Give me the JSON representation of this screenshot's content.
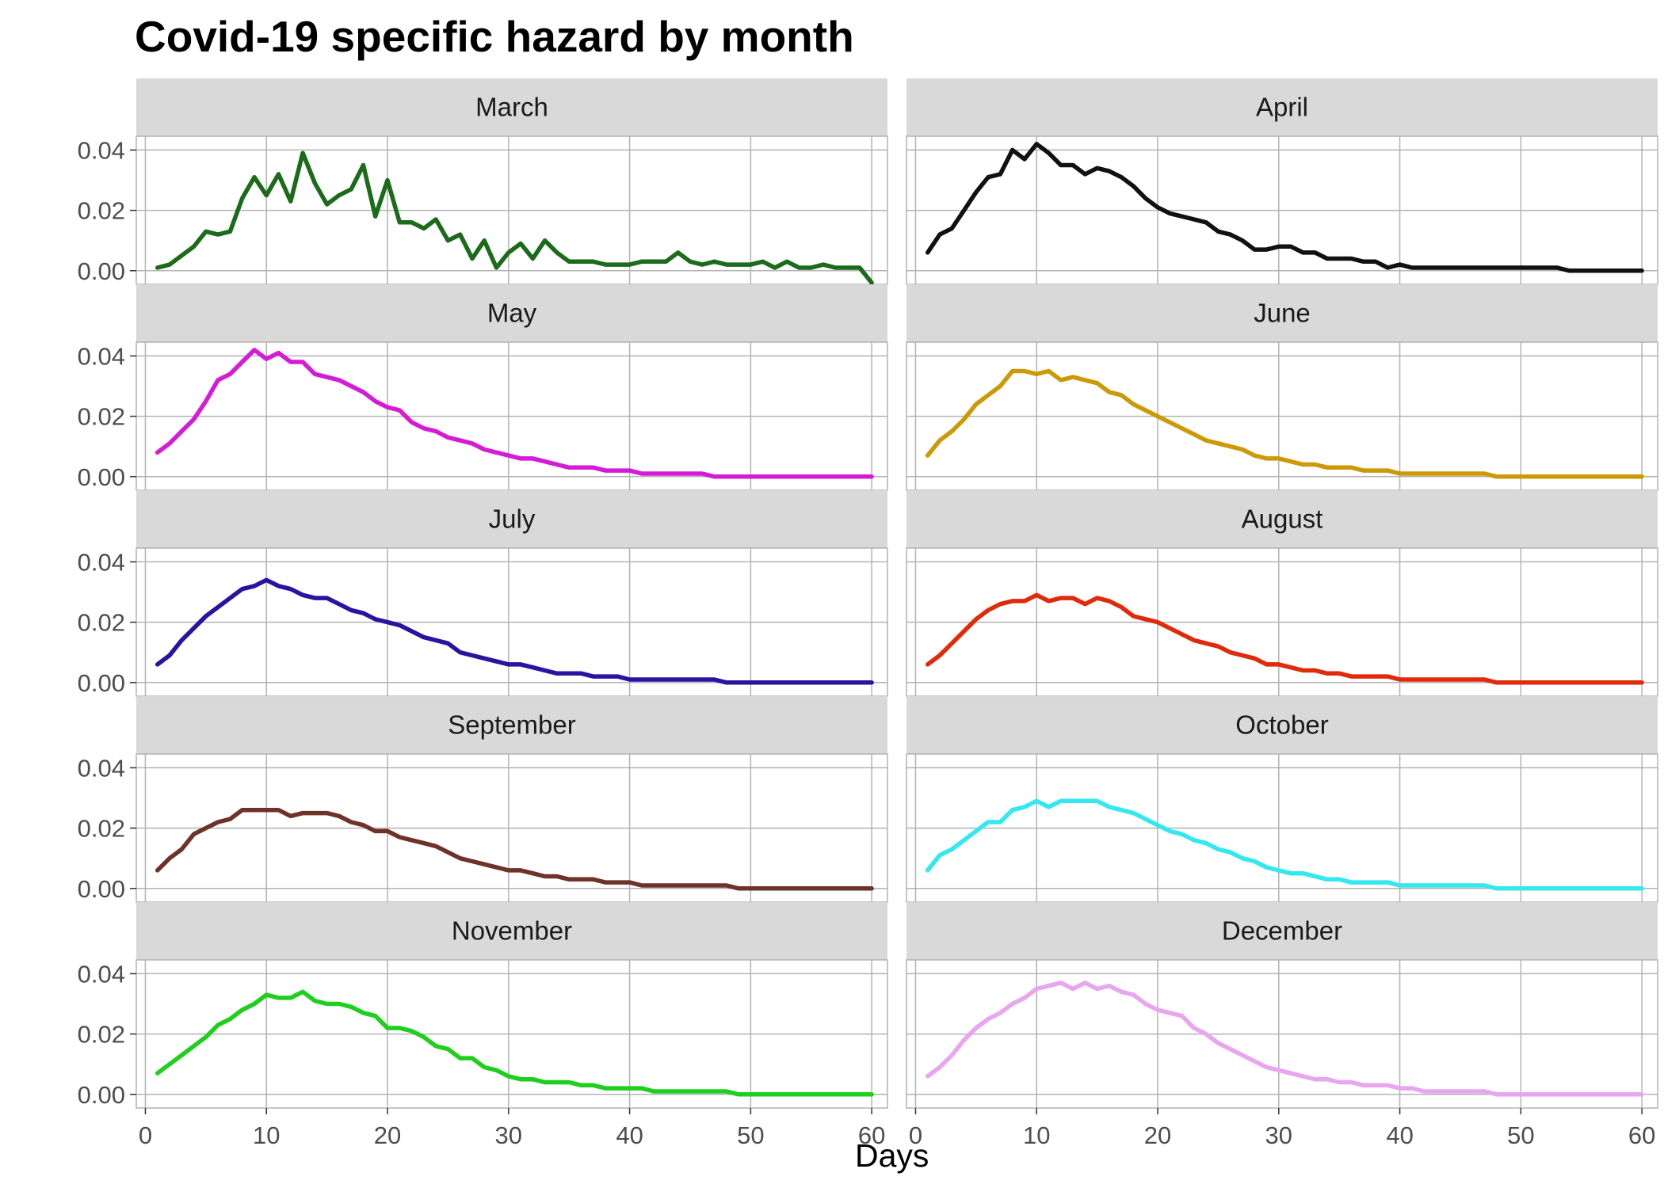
{
  "title": "Covid-19 specific hazard by month",
  "xlabel": "Days",
  "chart_data": {
    "type": "line",
    "title": "Covid-19 specific hazard by month",
    "xlabel": "Days",
    "ylabel": "",
    "xlim": [
      1,
      60
    ],
    "ylim": [
      -0.004,
      0.043
    ],
    "x_ticks": [
      0,
      10,
      20,
      30,
      40,
      50,
      60
    ],
    "y_ticks": [
      0.0,
      0.02,
      0.04
    ],
    "y_tick_labels": [
      "0.00",
      "0.02",
      "0.04"
    ],
    "grid": true,
    "facets": [
      {
        "name": "March",
        "color": "#1b6b1b",
        "values": [
          0.001,
          0.002,
          0.005,
          0.008,
          0.013,
          0.012,
          0.013,
          0.024,
          0.031,
          0.025,
          0.032,
          0.023,
          0.039,
          0.029,
          0.022,
          0.025,
          0.027,
          0.035,
          0.018,
          0.03,
          0.016,
          0.016,
          0.014,
          0.017,
          0.01,
          0.012,
          0.004,
          0.01,
          0.001,
          0.006,
          0.009,
          0.004,
          0.01,
          0.006,
          0.003,
          0.003,
          0.003,
          0.002,
          0.002,
          0.002,
          0.003,
          0.003,
          0.003,
          0.006,
          0.003,
          0.002,
          0.003,
          0.002,
          0.002,
          0.002,
          0.003,
          0.001,
          0.003,
          0.001,
          0.001,
          0.002,
          0.001,
          0.001,
          0.001,
          -0.004
        ]
      },
      {
        "name": "April",
        "color": "#111111",
        "values": [
          0.006,
          0.012,
          0.014,
          0.02,
          0.026,
          0.031,
          0.032,
          0.04,
          0.037,
          0.042,
          0.039,
          0.035,
          0.035,
          0.032,
          0.034,
          0.033,
          0.031,
          0.028,
          0.024,
          0.021,
          0.019,
          0.018,
          0.017,
          0.016,
          0.013,
          0.012,
          0.01,
          0.007,
          0.007,
          0.008,
          0.008,
          0.006,
          0.006,
          0.004,
          0.004,
          0.004,
          0.003,
          0.003,
          0.001,
          0.002,
          0.001,
          0.001,
          0.001,
          0.001,
          0.001,
          0.001,
          0.001,
          0.001,
          0.001,
          0.001,
          0.001,
          0.001,
          0.001,
          0.0,
          0.0,
          0.0,
          0.0,
          0.0,
          0.0,
          0.0
        ]
      },
      {
        "name": "May",
        "color": "#d61bd6",
        "values": [
          0.008,
          0.011,
          0.015,
          0.019,
          0.025,
          0.032,
          0.034,
          0.038,
          0.042,
          0.039,
          0.041,
          0.038,
          0.038,
          0.034,
          0.033,
          0.032,
          0.03,
          0.028,
          0.025,
          0.023,
          0.022,
          0.018,
          0.016,
          0.015,
          0.013,
          0.012,
          0.011,
          0.009,
          0.008,
          0.007,
          0.006,
          0.006,
          0.005,
          0.004,
          0.003,
          0.003,
          0.003,
          0.002,
          0.002,
          0.002,
          0.001,
          0.001,
          0.001,
          0.001,
          0.001,
          0.001,
          0.0,
          0.0,
          0.0,
          0.0,
          0.0,
          0.0,
          0.0,
          0.0,
          0.0,
          0.0,
          0.0,
          0.0,
          0.0,
          0.0
        ]
      },
      {
        "name": "June",
        "color": "#cc9a07",
        "values": [
          0.007,
          0.012,
          0.015,
          0.019,
          0.024,
          0.027,
          0.03,
          0.035,
          0.035,
          0.034,
          0.035,
          0.032,
          0.033,
          0.032,
          0.031,
          0.028,
          0.027,
          0.024,
          0.022,
          0.02,
          0.018,
          0.016,
          0.014,
          0.012,
          0.011,
          0.01,
          0.009,
          0.007,
          0.006,
          0.006,
          0.005,
          0.004,
          0.004,
          0.003,
          0.003,
          0.003,
          0.002,
          0.002,
          0.002,
          0.001,
          0.001,
          0.001,
          0.001,
          0.001,
          0.001,
          0.001,
          0.001,
          0.0,
          0.0,
          0.0,
          0.0,
          0.0,
          0.0,
          0.0,
          0.0,
          0.0,
          0.0,
          0.0,
          0.0,
          0.0
        ]
      },
      {
        "name": "July",
        "color": "#2a12a3",
        "values": [
          0.006,
          0.009,
          0.014,
          0.018,
          0.022,
          0.025,
          0.028,
          0.031,
          0.032,
          0.034,
          0.032,
          0.031,
          0.029,
          0.028,
          0.028,
          0.026,
          0.024,
          0.023,
          0.021,
          0.02,
          0.019,
          0.017,
          0.015,
          0.014,
          0.013,
          0.01,
          0.009,
          0.008,
          0.007,
          0.006,
          0.006,
          0.005,
          0.004,
          0.003,
          0.003,
          0.003,
          0.002,
          0.002,
          0.002,
          0.001,
          0.001,
          0.001,
          0.001,
          0.001,
          0.001,
          0.001,
          0.001,
          0.0,
          0.0,
          0.0,
          0.0,
          0.0,
          0.0,
          0.0,
          0.0,
          0.0,
          0.0,
          0.0,
          0.0,
          0.0
        ]
      },
      {
        "name": "August",
        "color": "#e02a0a",
        "values": [
          0.006,
          0.009,
          0.013,
          0.017,
          0.021,
          0.024,
          0.026,
          0.027,
          0.027,
          0.029,
          0.027,
          0.028,
          0.028,
          0.026,
          0.028,
          0.027,
          0.025,
          0.022,
          0.021,
          0.02,
          0.018,
          0.016,
          0.014,
          0.013,
          0.012,
          0.01,
          0.009,
          0.008,
          0.006,
          0.006,
          0.005,
          0.004,
          0.004,
          0.003,
          0.003,
          0.002,
          0.002,
          0.002,
          0.002,
          0.001,
          0.001,
          0.001,
          0.001,
          0.001,
          0.001,
          0.001,
          0.001,
          0.0,
          0.0,
          0.0,
          0.0,
          0.0,
          0.0,
          0.0,
          0.0,
          0.0,
          0.0,
          0.0,
          0.0,
          0.0
        ]
      },
      {
        "name": "September",
        "color": "#6e3228",
        "values": [
          0.006,
          0.01,
          0.013,
          0.018,
          0.02,
          0.022,
          0.023,
          0.026,
          0.026,
          0.026,
          0.026,
          0.024,
          0.025,
          0.025,
          0.025,
          0.024,
          0.022,
          0.021,
          0.019,
          0.019,
          0.017,
          0.016,
          0.015,
          0.014,
          0.012,
          0.01,
          0.009,
          0.008,
          0.007,
          0.006,
          0.006,
          0.005,
          0.004,
          0.004,
          0.003,
          0.003,
          0.003,
          0.002,
          0.002,
          0.002,
          0.001,
          0.001,
          0.001,
          0.001,
          0.001,
          0.001,
          0.001,
          0.001,
          0.0,
          0.0,
          0.0,
          0.0,
          0.0,
          0.0,
          0.0,
          0.0,
          0.0,
          0.0,
          0.0,
          0.0
        ]
      },
      {
        "name": "October",
        "color": "#33e8ee",
        "values": [
          0.006,
          0.011,
          0.013,
          0.016,
          0.019,
          0.022,
          0.022,
          0.026,
          0.027,
          0.029,
          0.027,
          0.029,
          0.029,
          0.029,
          0.029,
          0.027,
          0.026,
          0.025,
          0.023,
          0.021,
          0.019,
          0.018,
          0.016,
          0.015,
          0.013,
          0.012,
          0.01,
          0.009,
          0.007,
          0.006,
          0.005,
          0.005,
          0.004,
          0.003,
          0.003,
          0.002,
          0.002,
          0.002,
          0.002,
          0.001,
          0.001,
          0.001,
          0.001,
          0.001,
          0.001,
          0.001,
          0.001,
          0.0,
          0.0,
          0.0,
          0.0,
          0.0,
          0.0,
          0.0,
          0.0,
          0.0,
          0.0,
          0.0,
          0.0,
          0.0
        ]
      },
      {
        "name": "November",
        "color": "#1ecf1e",
        "values": [
          0.007,
          0.01,
          0.013,
          0.016,
          0.019,
          0.023,
          0.025,
          0.028,
          0.03,
          0.033,
          0.032,
          0.032,
          0.034,
          0.031,
          0.03,
          0.03,
          0.029,
          0.027,
          0.026,
          0.022,
          0.022,
          0.021,
          0.019,
          0.016,
          0.015,
          0.012,
          0.012,
          0.009,
          0.008,
          0.006,
          0.005,
          0.005,
          0.004,
          0.004,
          0.004,
          0.003,
          0.003,
          0.002,
          0.002,
          0.002,
          0.002,
          0.001,
          0.001,
          0.001,
          0.001,
          0.001,
          0.001,
          0.001,
          0.0,
          0.0,
          0.0,
          0.0,
          0.0,
          0.0,
          0.0,
          0.0,
          0.0,
          0.0,
          0.0,
          0.0
        ]
      },
      {
        "name": "December",
        "color": "#e8a6ee",
        "values": [
          0.006,
          0.009,
          0.013,
          0.018,
          0.022,
          0.025,
          0.027,
          0.03,
          0.032,
          0.035,
          0.036,
          0.037,
          0.035,
          0.037,
          0.035,
          0.036,
          0.034,
          0.033,
          0.03,
          0.028,
          0.027,
          0.026,
          0.022,
          0.02,
          0.017,
          0.015,
          0.013,
          0.011,
          0.009,
          0.008,
          0.007,
          0.006,
          0.005,
          0.005,
          0.004,
          0.004,
          0.003,
          0.003,
          0.003,
          0.002,
          0.002,
          0.001,
          0.001,
          0.001,
          0.001,
          0.001,
          0.001,
          0.0,
          0.0,
          0.0,
          0.0,
          0.0,
          0.0,
          0.0,
          0.0,
          0.0,
          0.0,
          0.0,
          0.0,
          0.0
        ]
      }
    ]
  }
}
